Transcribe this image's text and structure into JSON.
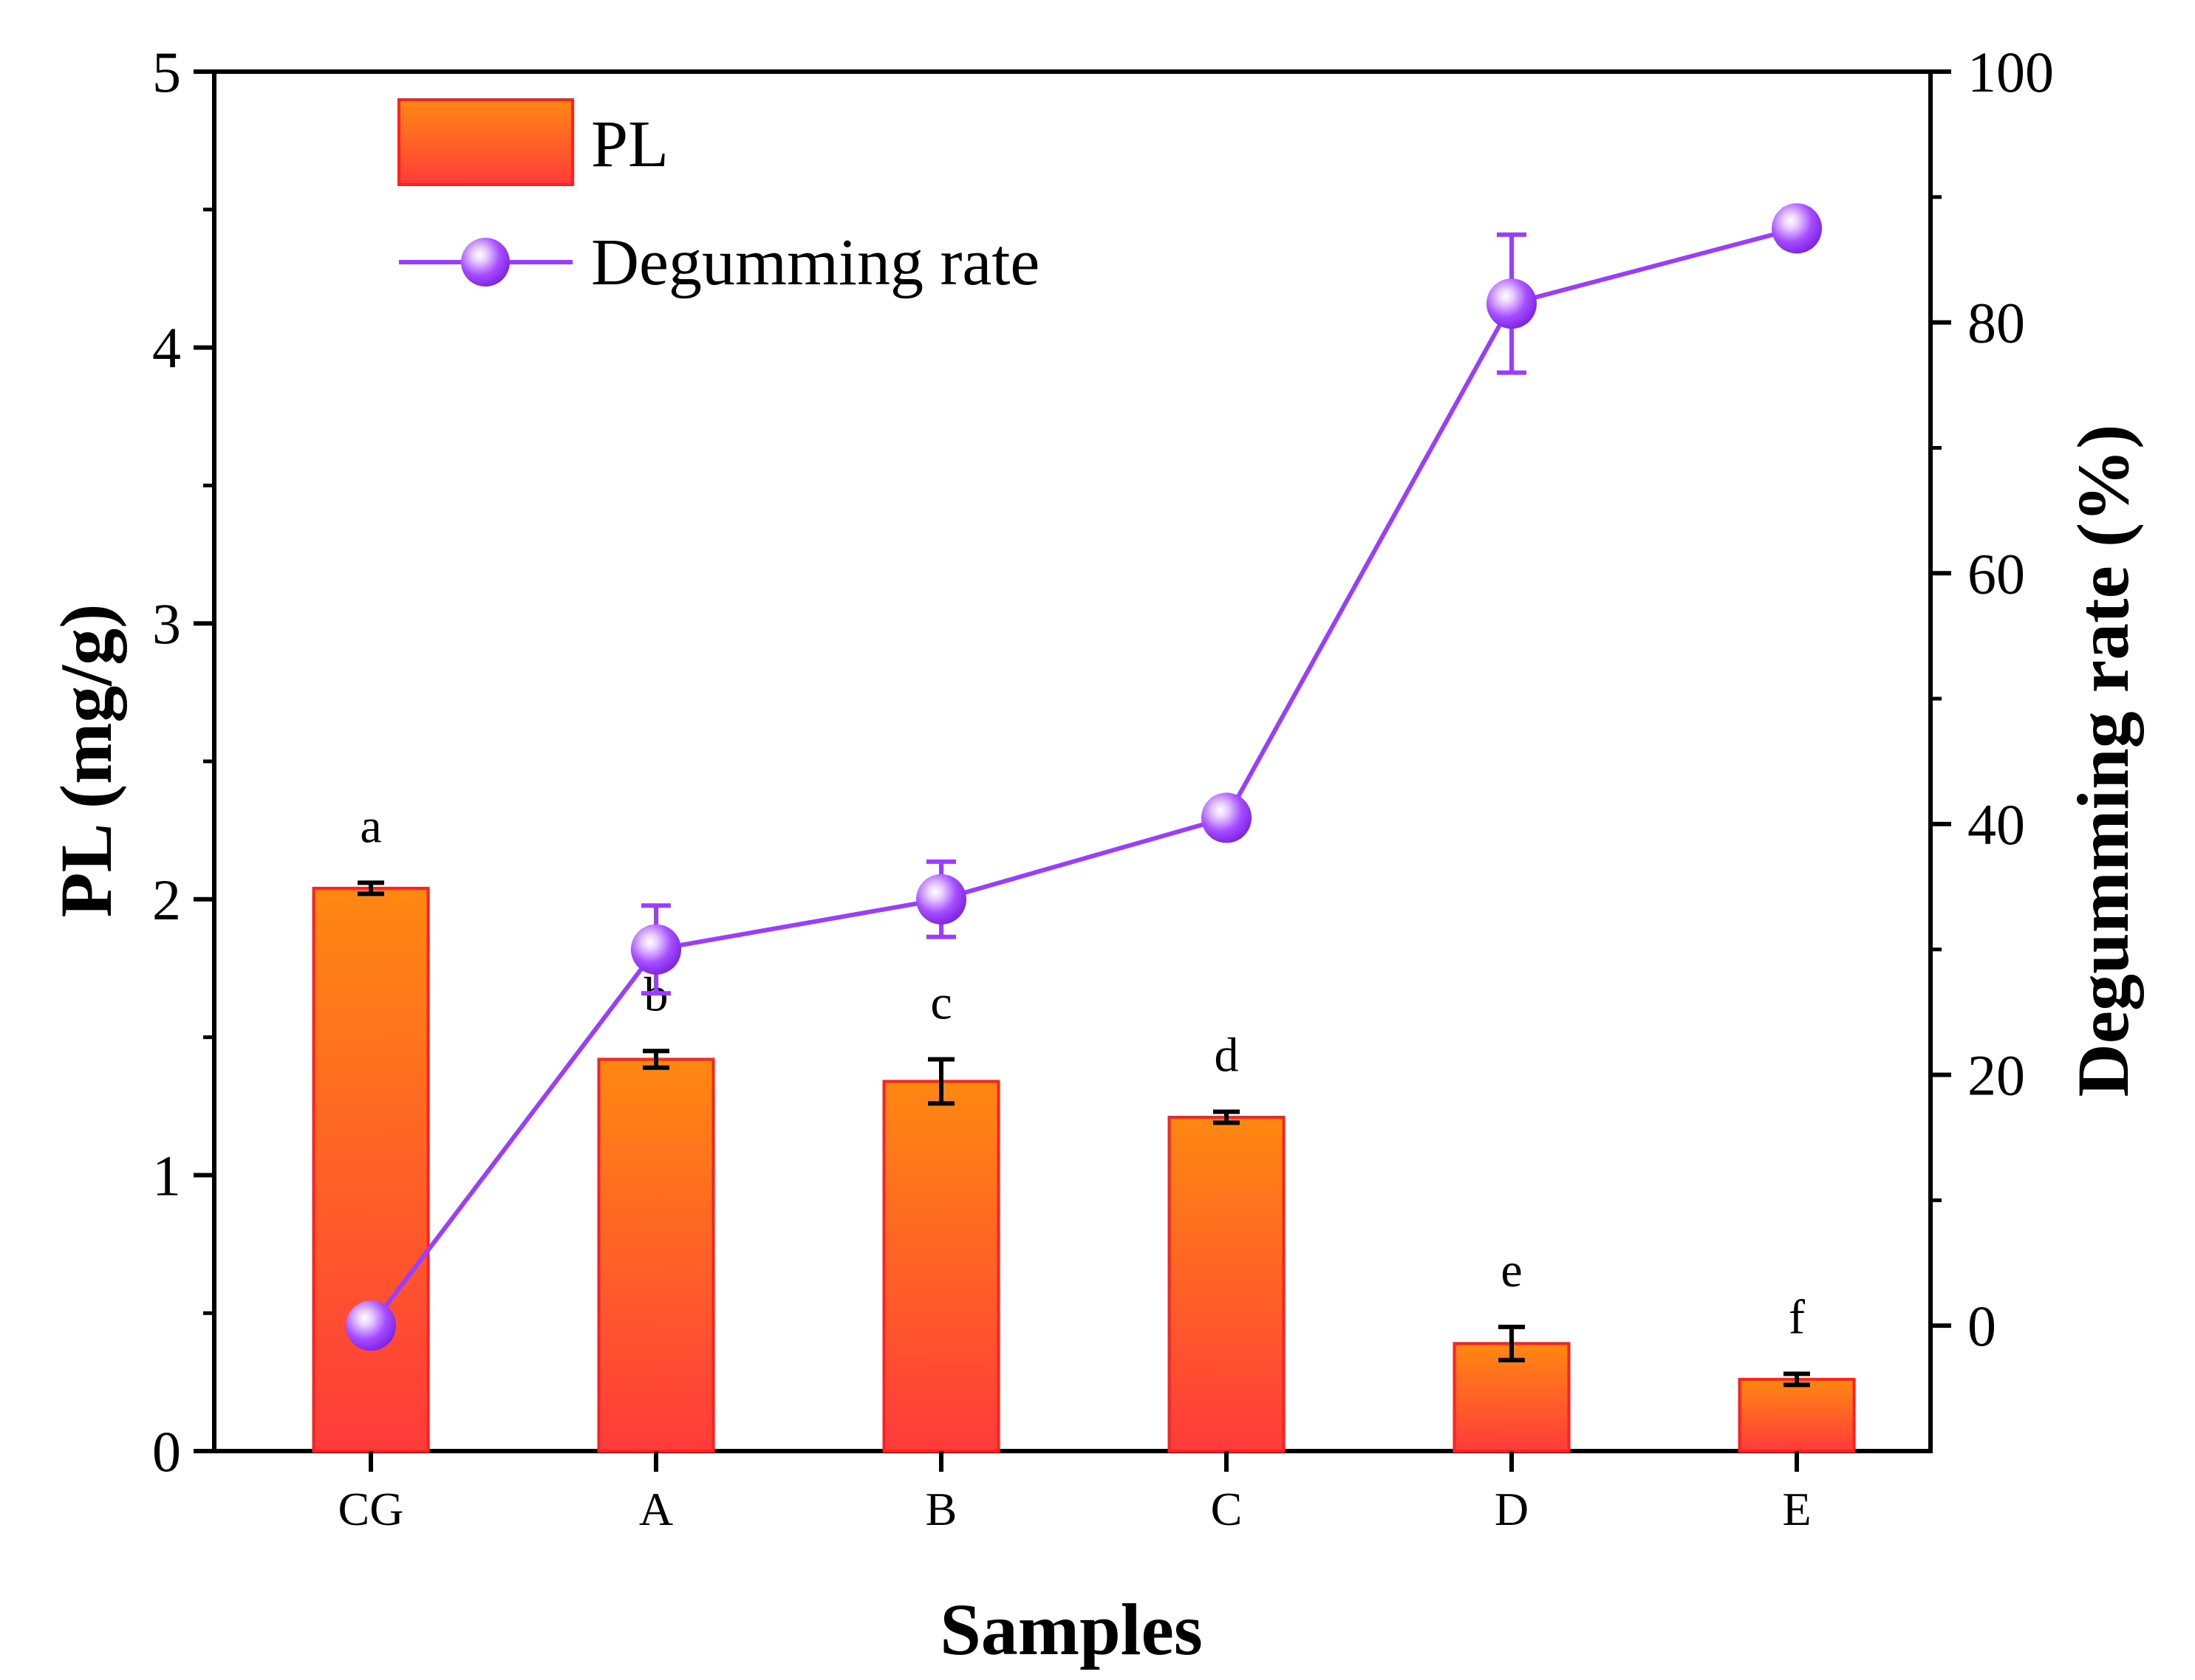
{
  "chart_data": {
    "type": "bar",
    "categories": [
      "CG",
      "A",
      "B",
      "C",
      "D",
      "E"
    ],
    "xlabel": "Samples",
    "ylabel_left": "PL (mg/g)",
    "ylabel_right": "Degumming rate (%)",
    "ylim_left": [
      0,
      5
    ],
    "ylim_right": [
      -10,
      100
    ],
    "yticks_left": [
      "0",
      "1",
      "2",
      "3",
      "4",
      "5"
    ],
    "yticks_right": [
      "0",
      "20",
      "40",
      "60",
      "80",
      "100"
    ],
    "grid": false,
    "legend_position": "top-left",
    "series": [
      {
        "name": "PL",
        "type": "bar",
        "axis": "left",
        "values": [
          2.04,
          1.42,
          1.34,
          1.21,
          0.39,
          0.26
        ],
        "errors": [
          0.02,
          0.03,
          0.08,
          0.02,
          0.06,
          0.02
        ],
        "letters": [
          "a",
          "b",
          "c",
          "d",
          "e",
          "f"
        ],
        "color_top": "#ff8811",
        "color_bottom": "#ff3b3b",
        "edge_color": "#ff2020"
      },
      {
        "name": "Degumming rate",
        "type": "line",
        "axis": "right",
        "values": [
          0,
          30,
          34,
          40.5,
          81.5,
          87.5
        ],
        "errors": [
          0,
          3.5,
          3.0,
          1.5,
          5.5,
          1.5
        ],
        "color": "#9b3dff"
      }
    ]
  }
}
